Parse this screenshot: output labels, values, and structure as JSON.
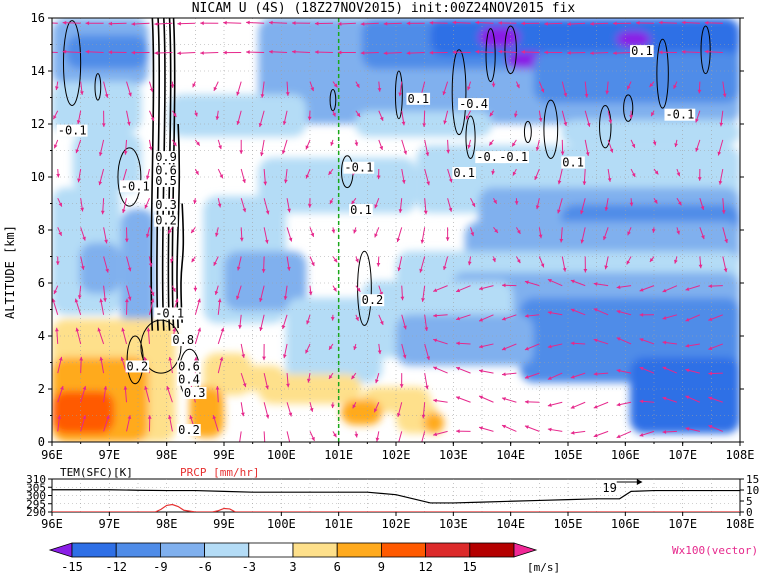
{
  "title": "NICAM U (4S) (18Z27NOV2015) init:00Z24NOV2015 fix",
  "chart_data": [
    {
      "type": "heatmap",
      "panel": "main",
      "x_ticks": [
        "96E",
        "97E",
        "98E",
        "99E",
        "100E",
        "101E",
        "102E",
        "103E",
        "104E",
        "105E",
        "106E",
        "107E",
        "108E"
      ],
      "xlim": [
        96,
        108
      ],
      "ylabel": "ALTITUDE [km]",
      "y_ticks": [
        "0",
        "2",
        "4",
        "6",
        "8",
        "10",
        "12",
        "14",
        "16"
      ],
      "ylim": [
        0,
        16
      ],
      "grid": true,
      "vertical_line_lon": 101,
      "contour_labels": [
        {
          "text": "-0.1",
          "lon": 96.1,
          "alt": 11.6
        },
        {
          "text": "-0.1",
          "lon": 97.2,
          "alt": 9.5
        },
        {
          "text": "0.9",
          "lon": 97.8,
          "alt": 10.6
        },
        {
          "text": "0.6",
          "lon": 97.8,
          "alt": 10.1
        },
        {
          "text": "0.5",
          "lon": 97.8,
          "alt": 9.7
        },
        {
          "text": "0.3",
          "lon": 97.8,
          "alt": 8.8
        },
        {
          "text": "0.2",
          "lon": 97.8,
          "alt": 8.2
        },
        {
          "text": "-0.1",
          "lon": 97.8,
          "alt": 4.7
        },
        {
          "text": "0.2",
          "lon": 97.3,
          "alt": 2.7
        },
        {
          "text": "0.8",
          "lon": 98.1,
          "alt": 3.7
        },
        {
          "text": "0.6",
          "lon": 98.2,
          "alt": 2.7
        },
        {
          "text": "0.4",
          "lon": 98.2,
          "alt": 2.2
        },
        {
          "text": "0.3",
          "lon": 98.3,
          "alt": 1.7
        },
        {
          "text": "0.2",
          "lon": 98.2,
          "alt": 0.3
        },
        {
          "text": "-0.1",
          "lon": 101.1,
          "alt": 10.2
        },
        {
          "text": "0.1",
          "lon": 101.2,
          "alt": 8.6
        },
        {
          "text": "0.2",
          "lon": 101.4,
          "alt": 5.2
        },
        {
          "text": "0.1",
          "lon": 102.2,
          "alt": 12.8
        },
        {
          "text": "-0.4",
          "lon": 103.1,
          "alt": 12.6
        },
        {
          "text": "0.1",
          "lon": 103.0,
          "alt": 10.0
        },
        {
          "text": "-0.1",
          "lon": 103.4,
          "alt": 10.6
        },
        {
          "text": "-0.1",
          "lon": 103.8,
          "alt": 10.6
        },
        {
          "text": "0.1",
          "lon": 104.9,
          "alt": 10.4
        },
        {
          "text": "0.1",
          "lon": 106.1,
          "alt": 14.6
        },
        {
          "text": "-0.1",
          "lon": 106.7,
          "alt": 12.2
        }
      ],
      "colorbar": {
        "levels": [
          "-15",
          "-12",
          "-9",
          "-6",
          "-3",
          "3",
          "6",
          "9",
          "12",
          "15"
        ],
        "colors": [
          "#8a1ee6",
          "#2e6fe6",
          "#4f8ce8",
          "#80b0ee",
          "#b4dcf6",
          "#ffffff",
          "#fee08b",
          "#ffaa1e",
          "#ff5a00",
          "#dc2a2a",
          "#b40000",
          "#f02896"
        ],
        "unit": "[m/s]"
      },
      "vector_label": "Wx100(vector)",
      "vector_color": "#e6288c"
    },
    {
      "type": "line",
      "panel": "surface",
      "x_ticks": [
        "96E",
        "97E",
        "98E",
        "99E",
        "100E",
        "101E",
        "102E",
        "103E",
        "104E",
        "105E",
        "106E",
        "107E",
        "108E"
      ],
      "xlim": [
        96,
        108
      ],
      "series": [
        {
          "name": "TEM(SFC)[K]",
          "axis": "left",
          "color": "#000000",
          "x": [
            96,
            96.5,
            97,
            97.5,
            98,
            98.5,
            99,
            99.5,
            100,
            100.5,
            101,
            101.5,
            102,
            102.3,
            102.6,
            103,
            103.5,
            104,
            104.5,
            105,
            105.5,
            105.9,
            106.1,
            106.5,
            107,
            107.5,
            108
          ],
          "values": [
            303.5,
            303.5,
            303.5,
            303.2,
            303,
            303,
            302.5,
            302,
            302,
            302,
            302,
            302,
            300.5,
            298,
            295.5,
            295.5,
            296,
            296.5,
            297,
            297.5,
            298,
            298,
            302.5,
            303,
            303,
            303,
            303
          ]
        },
        {
          "name": "PRCP [mm/hr]",
          "axis": "right",
          "color": "#e63232",
          "x": [
            96,
            97.8,
            97.9,
            98,
            98.1,
            98.2,
            98.3,
            98.5,
            98.8,
            98.9,
            99.0,
            99.1,
            99.2,
            108
          ],
          "values": [
            0,
            0,
            1.2,
            3.0,
            3.4,
            2.5,
            0.8,
            0,
            0,
            0.6,
            1.6,
            1.4,
            0,
            0
          ]
        }
      ],
      "left_ticks": [
        "310",
        "305",
        "300",
        "295",
        "290"
      ],
      "left_lim": [
        290,
        310
      ],
      "right_ticks": [
        "15",
        "10",
        "5",
        "0"
      ],
      "right_lim": [
        0,
        15
      ],
      "annotation": "19"
    }
  ]
}
